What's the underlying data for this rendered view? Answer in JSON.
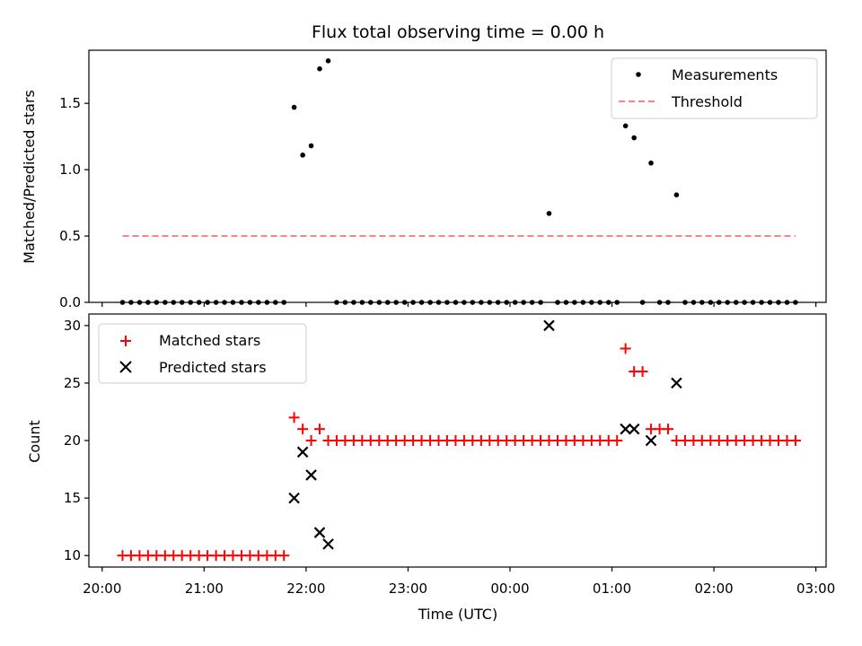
{
  "chart_data": [
    {
      "type": "scatter",
      "title": "Flux total observing time = 0.00 h",
      "ylabel": "Matched/Predicted stars",
      "ylim": [
        0,
        1.9
      ],
      "yticks": [
        0.0,
        0.5,
        1.0,
        1.5
      ],
      "ytick_labels": [
        "0.0",
        "0.5",
        "1.0",
        "1.5"
      ],
      "xlim": [
        19.87,
        27.1
      ],
      "xticks": [
        20,
        21,
        22,
        23,
        24,
        25,
        26,
        27
      ],
      "xtick_labels": [],
      "legend_position": "top-right",
      "series": [
        {
          "name": "Measurements",
          "kind": "points",
          "color": "#000000",
          "x": [
            20.2,
            20.283,
            20.367,
            20.45,
            20.533,
            20.617,
            20.7,
            20.783,
            20.867,
            20.95,
            21.033,
            21.117,
            21.2,
            21.283,
            21.367,
            21.45,
            21.533,
            21.617,
            21.7,
            21.783,
            21.883,
            21.967,
            22.05,
            22.133,
            22.217,
            22.3,
            22.383,
            22.467,
            22.55,
            22.633,
            22.717,
            22.8,
            22.883,
            22.967,
            23.05,
            23.133,
            23.217,
            23.3,
            23.383,
            23.467,
            23.55,
            23.633,
            23.717,
            23.8,
            23.883,
            23.967,
            24.05,
            24.133,
            24.217,
            24.3,
            24.383,
            24.467,
            24.55,
            24.633,
            24.717,
            24.8,
            24.883,
            24.967,
            25.05,
            25.133,
            25.217,
            25.3,
            25.383,
            25.467,
            25.55,
            25.633,
            25.717,
            25.8,
            25.883,
            25.967,
            26.05,
            26.133,
            26.217,
            26.3,
            26.383,
            26.467,
            26.55,
            26.633,
            26.717,
            26.8
          ],
          "y": [
            0,
            0,
            0,
            0,
            0,
            0,
            0,
            0,
            0,
            0,
            0,
            0,
            0,
            0,
            0,
            0,
            0,
            0,
            0,
            0,
            1.47,
            1.11,
            1.18,
            1.76,
            1.82,
            0,
            0,
            0,
            0,
            0,
            0,
            0,
            0,
            0,
            0,
            0,
            0,
            0,
            0,
            0,
            0,
            0,
            0,
            0,
            0,
            0,
            0,
            0,
            0,
            0,
            0.67,
            0,
            0,
            0,
            0,
            0,
            0,
            0,
            0,
            1.33,
            1.24,
            0,
            1.05,
            0,
            0,
            0.81,
            0,
            0,
            0,
            0,
            0,
            0,
            0,
            0,
            0,
            0,
            0,
            0,
            0,
            0
          ]
        },
        {
          "name": "Threshold",
          "kind": "line",
          "color": "#ff8080",
          "dashed": true,
          "x": [
            20.2,
            26.8
          ],
          "y": [
            0.5,
            0.5
          ]
        }
      ]
    },
    {
      "type": "scatter",
      "xlabel": "Time (UTC)",
      "ylabel": "Count",
      "ylim": [
        9,
        31
      ],
      "yticks": [
        10,
        15,
        20,
        25,
        30
      ],
      "ytick_labels": [
        "10",
        "15",
        "20",
        "25",
        "30"
      ],
      "xlim": [
        19.87,
        27.1
      ],
      "xticks": [
        20,
        21,
        22,
        23,
        24,
        25,
        26,
        27
      ],
      "xtick_labels": [
        "20:00",
        "21:00",
        "22:00",
        "23:00",
        "00:00",
        "01:00",
        "02:00",
        "03:00"
      ],
      "legend_position": "top-left",
      "series": [
        {
          "name": "Matched stars",
          "marker": "plus",
          "color": "#ff0000",
          "x": [
            20.2,
            20.283,
            20.367,
            20.45,
            20.533,
            20.617,
            20.7,
            20.783,
            20.867,
            20.95,
            21.033,
            21.117,
            21.2,
            21.283,
            21.367,
            21.45,
            21.533,
            21.617,
            21.7,
            21.783,
            21.883,
            21.967,
            22.05,
            22.133,
            22.217,
            22.3,
            22.383,
            22.467,
            22.55,
            22.633,
            22.717,
            22.8,
            22.883,
            22.967,
            23.05,
            23.133,
            23.217,
            23.3,
            23.383,
            23.467,
            23.55,
            23.633,
            23.717,
            23.8,
            23.883,
            23.967,
            24.05,
            24.133,
            24.217,
            24.3,
            24.383,
            24.467,
            24.55,
            24.633,
            24.717,
            24.8,
            24.883,
            24.967,
            25.05,
            25.133,
            25.217,
            25.3,
            25.383,
            25.467,
            25.55,
            25.633,
            25.717,
            25.8,
            25.883,
            25.967,
            26.05,
            26.133,
            26.217,
            26.3,
            26.383,
            26.467,
            26.55,
            26.633,
            26.717,
            26.8
          ],
          "y": [
            10,
            10,
            10,
            10,
            10,
            10,
            10,
            10,
            10,
            10,
            10,
            10,
            10,
            10,
            10,
            10,
            10,
            10,
            10,
            10,
            22,
            21,
            20,
            21,
            20,
            20,
            20,
            20,
            20,
            20,
            20,
            20,
            20,
            20,
            20,
            20,
            20,
            20,
            20,
            20,
            20,
            20,
            20,
            20,
            20,
            20,
            20,
            20,
            20,
            20,
            20,
            20,
            20,
            20,
            20,
            20,
            20,
            20,
            20,
            28,
            26,
            26,
            21,
            21,
            21,
            20,
            20,
            20,
            20,
            20,
            20,
            20,
            20,
            20,
            20,
            20,
            20,
            20,
            20,
            20
          ]
        },
        {
          "name": "Predicted stars",
          "marker": "x",
          "color": "#000000",
          "x": [
            21.883,
            21.967,
            22.05,
            22.133,
            22.217,
            24.383,
            25.133,
            25.217,
            25.383,
            25.633
          ],
          "y": [
            15,
            19,
            17,
            12,
            11,
            30,
            21,
            21,
            20,
            25
          ]
        }
      ]
    }
  ]
}
